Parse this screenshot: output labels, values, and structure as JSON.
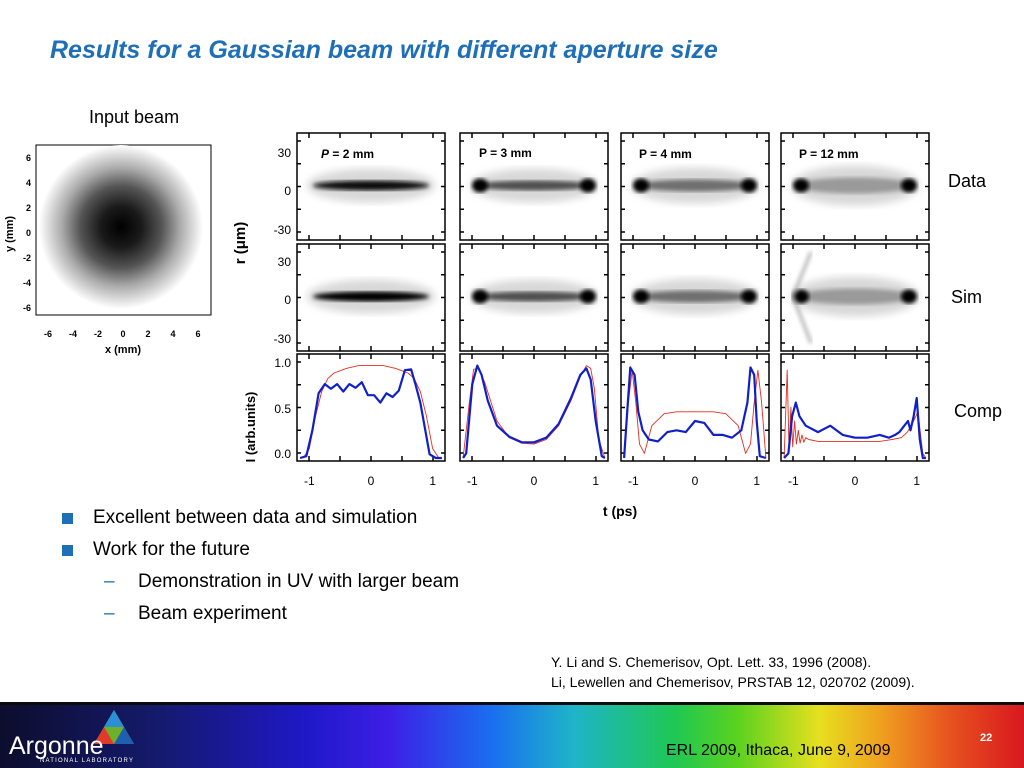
{
  "slide": {
    "title": "Results for a Gaussian beam with different aperture size",
    "input_label": "Input beam",
    "row_labels": {
      "data": "Data",
      "sim": "Sim",
      "comp": "Comp"
    }
  },
  "input_plot": {
    "xlabel": "x (mm)",
    "ylabel": "y (mm)",
    "x_ticks": [
      "-6",
      "-4",
      "-2",
      "0",
      "2",
      "4",
      "6"
    ],
    "y_ticks": [
      "6",
      "4",
      "2",
      "0",
      "-2",
      "-4",
      "-6"
    ]
  },
  "figure": {
    "r_label": "r (μm)",
    "i_label": "I (arb.units)",
    "t_label": "t (ps)",
    "r_ticks": [
      "30",
      "0",
      "-30"
    ],
    "i_ticks": [
      "1.0",
      "0.5",
      "0.0"
    ],
    "t_ticks": [
      "-1",
      "0",
      "1"
    ],
    "panels": [
      {
        "prefix": "P",
        "rest": " = 2 mm",
        "italic": true
      },
      {
        "prefix": "P",
        "rest": " = 3 mm",
        "italic": false
      },
      {
        "prefix": "P",
        "rest": " = 4 mm",
        "italic": false
      },
      {
        "prefix": "P",
        "rest": " = 12 mm",
        "italic": false
      }
    ]
  },
  "chart_data": [
    {
      "type": "line",
      "title": "P = 2 mm",
      "xlabel": "t (ps)",
      "ylabel": "I (arb.units)",
      "xlim": [
        -1.2,
        1.2
      ],
      "ylim": [
        0,
        1.05
      ],
      "series": [
        {
          "color": "#1020c8",
          "x": [
            -1.15,
            -1.05,
            -0.95,
            -0.85,
            -0.75,
            -0.65,
            -0.55,
            -0.45,
            -0.35,
            -0.25,
            -0.15,
            -0.05,
            0.05,
            0.15,
            0.25,
            0.35,
            0.45,
            0.55,
            0.65,
            0.72,
            0.8,
            0.88,
            0.95,
            1.05,
            1.15
          ],
          "y": [
            0,
            0.02,
            0.3,
            0.7,
            0.8,
            0.75,
            0.8,
            0.72,
            0.8,
            0.76,
            0.82,
            0.68,
            0.68,
            0.6,
            0.7,
            0.66,
            0.73,
            0.95,
            0.96,
            0.8,
            0.6,
            0.3,
            0.04,
            0,
            0
          ]
        },
        {
          "color": "#e03020",
          "x": [
            -1.1,
            -1.0,
            -0.9,
            -0.8,
            -0.7,
            -0.6,
            -0.4,
            -0.2,
            0,
            0.2,
            0.4,
            0.6,
            0.7,
            0.8,
            0.9,
            1.0,
            1.1
          ],
          "y": [
            0,
            0.1,
            0.45,
            0.72,
            0.86,
            0.92,
            0.97,
            1.0,
            1.0,
            1.0,
            0.97,
            0.92,
            0.86,
            0.72,
            0.45,
            0.1,
            0
          ]
        }
      ]
    },
    {
      "type": "line",
      "title": "P = 3 mm",
      "xlabel": "t (ps)",
      "ylabel": "I (arb.units)",
      "xlim": [
        -1.2,
        1.2
      ],
      "ylim": [
        0,
        1.05
      ],
      "series": [
        {
          "color": "#1020c8",
          "x": [
            -1.15,
            -1.1,
            -1.0,
            -0.92,
            -0.85,
            -0.75,
            -0.6,
            -0.4,
            -0.2,
            0,
            0.2,
            0.4,
            0.6,
            0.75,
            0.85,
            0.92,
            1.0,
            1.1,
            1.15
          ],
          "y": [
            0,
            0.05,
            0.8,
            1.0,
            0.9,
            0.62,
            0.35,
            0.23,
            0.17,
            0.17,
            0.22,
            0.37,
            0.65,
            0.9,
            0.97,
            0.85,
            0.4,
            0.02,
            0
          ]
        },
        {
          "color": "#e03020",
          "x": [
            -1.15,
            -1.05,
            -0.98,
            -0.9,
            -0.8,
            -0.6,
            -0.4,
            -0.2,
            0,
            0.2,
            0.4,
            0.6,
            0.75,
            0.85,
            0.92,
            0.98,
            1.05,
            1.15
          ],
          "y": [
            0,
            0.6,
            0.96,
            0.97,
            0.82,
            0.4,
            0.22,
            0.16,
            0.15,
            0.2,
            0.35,
            0.62,
            0.88,
            1.0,
            0.97,
            0.75,
            0.2,
            0
          ]
        }
      ]
    },
    {
      "type": "line",
      "title": "P = 4 mm",
      "xlabel": "t (ps)",
      "ylabel": "I (arb.units)",
      "xlim": [
        -1.2,
        1.2
      ],
      "ylim": [
        0,
        1.05
      ],
      "series": [
        {
          "color": "#1020c8",
          "x": [
            -1.15,
            -1.1,
            -1.05,
            -0.98,
            -0.92,
            -0.85,
            -0.75,
            -0.6,
            -0.45,
            -0.3,
            -0.15,
            0,
            0.15,
            0.3,
            0.45,
            0.6,
            0.75,
            0.85,
            0.9,
            0.96,
            1.0,
            1.05,
            1.15
          ],
          "y": [
            0,
            0.5,
            0.98,
            0.9,
            0.5,
            0.3,
            0.2,
            0.18,
            0.28,
            0.3,
            0.28,
            0.4,
            0.38,
            0.25,
            0.25,
            0.22,
            0.3,
            0.6,
            0.98,
            0.9,
            0.4,
            0.02,
            0
          ]
        },
        {
          "color": "#e03020",
          "x": [
            -1.15,
            -1.08,
            -1.02,
            -0.96,
            -0.9,
            -0.82,
            -0.7,
            -0.5,
            -0.3,
            -0.1,
            0.1,
            0.3,
            0.5,
            0.7,
            0.82,
            0.9,
            0.96,
            1.02,
            1.08,
            1.15
          ],
          "y": [
            0,
            0.6,
            0.95,
            0.6,
            0.15,
            0.05,
            0.35,
            0.48,
            0.5,
            0.5,
            0.5,
            0.5,
            0.48,
            0.35,
            0.05,
            0.15,
            0.6,
            0.95,
            0.6,
            0
          ]
        }
      ]
    },
    {
      "type": "line",
      "title": "P = 12 mm",
      "xlabel": "t (ps)",
      "ylabel": "I (arb.units)",
      "xlim": [
        -1.2,
        1.2
      ],
      "ylim": [
        0,
        1.05
      ],
      "series": [
        {
          "color": "#1020c8",
          "x": [
            -1.15,
            -1.08,
            -1.02,
            -0.96,
            -0.9,
            -0.8,
            -0.6,
            -0.4,
            -0.2,
            0,
            0.2,
            0.4,
            0.55,
            0.65,
            0.72,
            0.8,
            0.86,
            0.9,
            0.95,
            1.0,
            1.05,
            1.1,
            1.15
          ],
          "y": [
            0,
            0.05,
            0.45,
            0.6,
            0.45,
            0.35,
            0.28,
            0.35,
            0.25,
            0.22,
            0.22,
            0.25,
            0.22,
            0.25,
            0.28,
            0.35,
            0.4,
            0.3,
            0.45,
            0.65,
            0.2,
            0,
            0
          ]
        },
        {
          "color": "#e03020",
          "x": [
            -1.15,
            -1.1,
            -1.07,
            -1.04,
            -1.01,
            -0.98,
            -0.95,
            -0.92,
            -0.89,
            -0.86,
            -0.83,
            -0.8,
            -0.75,
            -0.6,
            -0.4,
            -0.2,
            0,
            0.2,
            0.4,
            0.6,
            0.75,
            0.85,
            0.95,
            1.02,
            1.1,
            1.15
          ],
          "y": [
            0,
            0.95,
            0.1,
            0.55,
            0.12,
            0.4,
            0.15,
            0.3,
            0.16,
            0.25,
            0.17,
            0.22,
            0.2,
            0.18,
            0.18,
            0.18,
            0.18,
            0.18,
            0.18,
            0.2,
            0.22,
            0.28,
            0.4,
            0.5,
            0.05,
            0
          ]
        }
      ]
    }
  ],
  "bullets": {
    "b1": "Excellent between data and simulation",
    "b2": "Work for the future",
    "s1": "Demonstration in UV with larger beam",
    "s2": "Beam experiment"
  },
  "references": {
    "r1": "Y. Li and S. Chemerisov, Opt. Lett. 33, 1996 (2008).",
    "r2": "Li, Lewellen and Chemerisov, PRSTAB 12, 020702 (2009)."
  },
  "footer": {
    "logo": "Argonne",
    "logo_sub": "NATIONAL LABORATORY",
    "text": "ERL 2009, Ithaca, June 9, 2009",
    "page": "22"
  },
  "colors": {
    "title": "#1f6fb8",
    "bullet": "#1f6fb8",
    "data_curve": "#1020c8",
    "sim_curve": "#e03020"
  }
}
